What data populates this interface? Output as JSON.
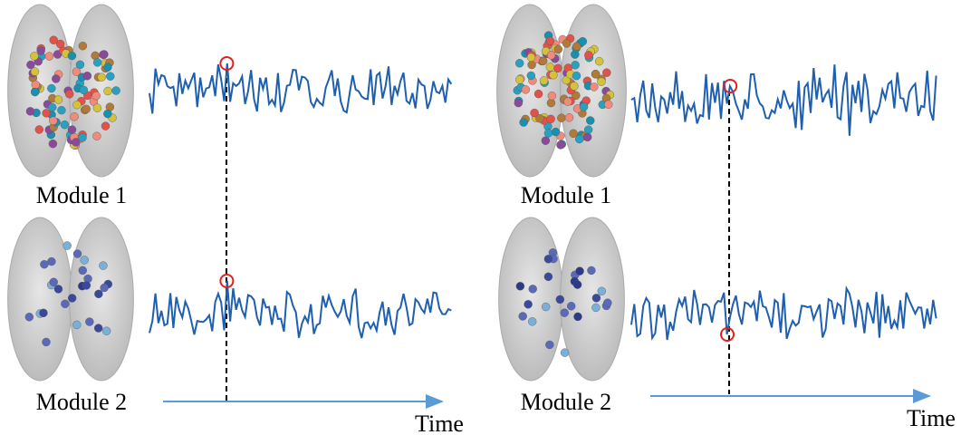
{
  "panels": [
    {
      "modules": [
        {
          "label": "Module 1"
        },
        {
          "label": "Module 2"
        }
      ],
      "axis_label": "Time"
    },
    {
      "modules": [
        {
          "label": "Module 1"
        },
        {
          "label": "Module 2"
        }
      ],
      "axis_label": "Time"
    }
  ]
}
